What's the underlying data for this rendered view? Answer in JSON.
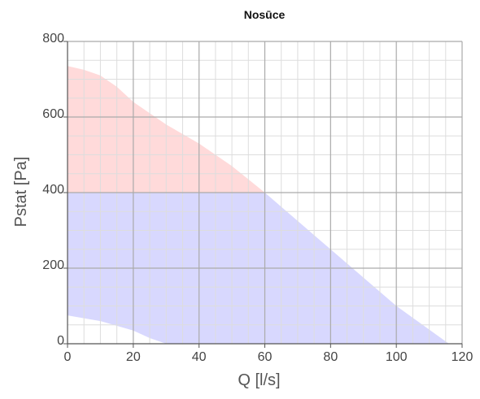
{
  "chart_data": {
    "type": "area",
    "title": "Nosūce",
    "xlabel": "Q [l/s]",
    "ylabel": "Pstat [Pa]",
    "xlim": [
      0,
      120
    ],
    "ylim": [
      0,
      800
    ],
    "x_ticks": [
      0,
      20,
      40,
      60,
      80,
      100,
      120
    ],
    "y_ticks": [
      0,
      200,
      400,
      600,
      800
    ],
    "grid": true,
    "colors": {
      "upper_region": "#ffdada",
      "lower_region": "#d8d8fe",
      "major_grid": "#aaaaaa",
      "minor_grid": "#dddddd",
      "axis": "#555555",
      "text": "#444444"
    },
    "series": [
      {
        "region": "upper",
        "y_min": 400,
        "upper_boundary": {
          "x": [
            0,
            5,
            10,
            15,
            20,
            30,
            40,
            50,
            60
          ],
          "y": [
            735,
            725,
            710,
            680,
            640,
            580,
            530,
            470,
            400
          ]
        }
      },
      {
        "region": "lower",
        "y_max": 400,
        "upper_boundary": {
          "x": [
            0,
            60,
            80,
            100,
            116
          ],
          "y": [
            400,
            400,
            250,
            100,
            0
          ]
        },
        "lower_boundary": {
          "x": [
            0,
            10,
            20,
            25,
            30
          ],
          "y": [
            75,
            60,
            35,
            15,
            0
          ]
        }
      }
    ]
  }
}
